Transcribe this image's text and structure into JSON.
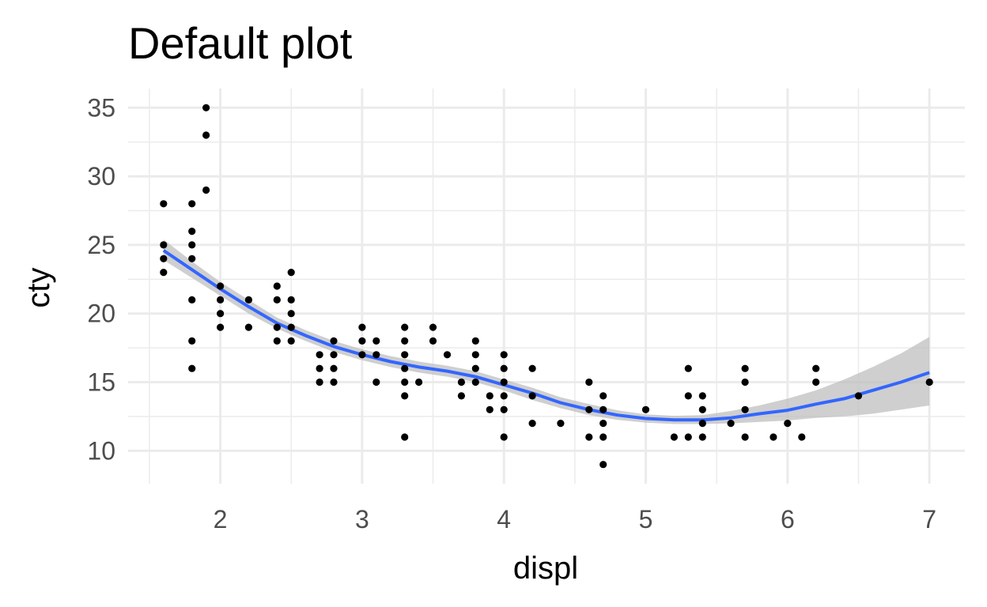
{
  "chart_data": {
    "type": "scatter",
    "title": "Default plot",
    "xlabel": "displ",
    "ylabel": "cty",
    "xlim": [
      1.35,
      7.25
    ],
    "ylim": [
      7.6,
      36.4
    ],
    "x_ticks": [
      2,
      3,
      4,
      5,
      6,
      7
    ],
    "y_ticks": [
      10,
      15,
      20,
      25,
      30,
      35
    ],
    "grid": true,
    "legend": "none",
    "colors": {
      "points": "#000000",
      "smooth_line": "#3366ff",
      "confidence_band": "#bfbfbf",
      "grid": "#ebebeb"
    },
    "points": [
      [
        1.6,
        28
      ],
      [
        1.6,
        25
      ],
      [
        1.6,
        24
      ],
      [
        1.6,
        23
      ],
      [
        1.8,
        28
      ],
      [
        1.8,
        26
      ],
      [
        1.8,
        25
      ],
      [
        1.8,
        24
      ],
      [
        1.8,
        21
      ],
      [
        1.8,
        18
      ],
      [
        1.8,
        16
      ],
      [
        1.9,
        35
      ],
      [
        1.9,
        33
      ],
      [
        1.9,
        29
      ],
      [
        2.0,
        22
      ],
      [
        2.0,
        21
      ],
      [
        2.0,
        20
      ],
      [
        2.0,
        19
      ],
      [
        2.2,
        21
      ],
      [
        2.2,
        19
      ],
      [
        2.4,
        22
      ],
      [
        2.4,
        21
      ],
      [
        2.4,
        19
      ],
      [
        2.4,
        18
      ],
      [
        2.5,
        23
      ],
      [
        2.5,
        21
      ],
      [
        2.5,
        20
      ],
      [
        2.5,
        19
      ],
      [
        2.5,
        18
      ],
      [
        2.7,
        17
      ],
      [
        2.7,
        16
      ],
      [
        2.7,
        15
      ],
      [
        2.8,
        18
      ],
      [
        2.8,
        17
      ],
      [
        2.8,
        16
      ],
      [
        2.8,
        15
      ],
      [
        3.0,
        19
      ],
      [
        3.0,
        18
      ],
      [
        3.0,
        17
      ],
      [
        3.1,
        18
      ],
      [
        3.1,
        17
      ],
      [
        3.1,
        15
      ],
      [
        3.3,
        19
      ],
      [
        3.3,
        18
      ],
      [
        3.3,
        17
      ],
      [
        3.3,
        16
      ],
      [
        3.3,
        15
      ],
      [
        3.3,
        14
      ],
      [
        3.3,
        11
      ],
      [
        3.4,
        15
      ],
      [
        3.5,
        19
      ],
      [
        3.5,
        18
      ],
      [
        3.6,
        17
      ],
      [
        3.7,
        15
      ],
      [
        3.7,
        14
      ],
      [
        3.8,
        18
      ],
      [
        3.8,
        17
      ],
      [
        3.8,
        16
      ],
      [
        3.8,
        15
      ],
      [
        3.9,
        14
      ],
      [
        3.9,
        13
      ],
      [
        4.0,
        17
      ],
      [
        4.0,
        16
      ],
      [
        4.0,
        15
      ],
      [
        4.0,
        14
      ],
      [
        4.0,
        13
      ],
      [
        4.0,
        11
      ],
      [
        4.2,
        16
      ],
      [
        4.2,
        14
      ],
      [
        4.2,
        12
      ],
      [
        4.4,
        12
      ],
      [
        4.6,
        15
      ],
      [
        4.6,
        13
      ],
      [
        4.6,
        11
      ],
      [
        4.7,
        14
      ],
      [
        4.7,
        13
      ],
      [
        4.7,
        12
      ],
      [
        4.7,
        11
      ],
      [
        4.7,
        9
      ],
      [
        5.0,
        13
      ],
      [
        5.2,
        11
      ],
      [
        5.3,
        16
      ],
      [
        5.3,
        14
      ],
      [
        5.3,
        11
      ],
      [
        5.4,
        14
      ],
      [
        5.4,
        13
      ],
      [
        5.4,
        12
      ],
      [
        5.4,
        11
      ],
      [
        5.6,
        12
      ],
      [
        5.7,
        16
      ],
      [
        5.7,
        15
      ],
      [
        5.7,
        13
      ],
      [
        5.7,
        11
      ],
      [
        5.9,
        11
      ],
      [
        6.0,
        12
      ],
      [
        6.1,
        11
      ],
      [
        6.2,
        16
      ],
      [
        6.2,
        15
      ],
      [
        6.5,
        14
      ],
      [
        7.0,
        15
      ]
    ],
    "smooth": {
      "x": [
        1.6,
        1.8,
        2.0,
        2.2,
        2.4,
        2.6,
        2.8,
        3.0,
        3.2,
        3.4,
        3.6,
        3.8,
        4.0,
        4.2,
        4.4,
        4.6,
        4.8,
        5.0,
        5.2,
        5.4,
        5.6,
        5.8,
        6.0,
        6.2,
        6.4,
        6.6,
        6.8,
        7.0
      ],
      "y": [
        24.6,
        23.2,
        21.8,
        20.5,
        19.3,
        18.4,
        17.6,
        17.0,
        16.5,
        16.1,
        15.8,
        15.4,
        14.8,
        14.2,
        13.5,
        13.0,
        12.6,
        12.35,
        12.25,
        12.25,
        12.4,
        12.7,
        12.95,
        13.4,
        13.8,
        14.4,
        15.0,
        15.7
      ],
      "lower": [
        23.9,
        22.6,
        21.3,
        20.0,
        18.9,
        18.0,
        17.2,
        16.6,
        16.1,
        15.7,
        15.4,
        15.0,
        14.4,
        13.7,
        13.1,
        12.6,
        12.25,
        12.05,
        11.95,
        11.95,
        12.0,
        12.1,
        12.2,
        12.4,
        12.5,
        12.7,
        13.0,
        13.3
      ],
      "upper": [
        25.4,
        23.8,
        22.3,
        21.0,
        19.7,
        18.8,
        18.0,
        17.4,
        16.9,
        16.5,
        16.2,
        15.8,
        15.2,
        14.6,
        13.9,
        13.4,
        12.95,
        12.65,
        12.55,
        12.6,
        12.9,
        13.3,
        13.8,
        14.4,
        15.2,
        16.1,
        17.1,
        18.3
      ]
    }
  }
}
